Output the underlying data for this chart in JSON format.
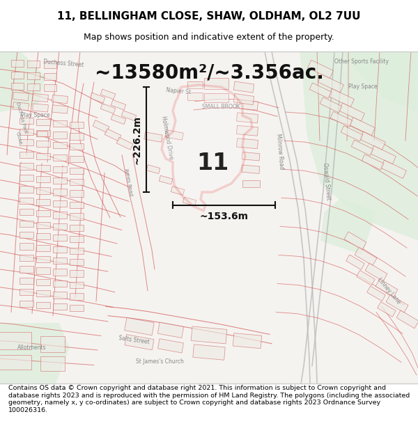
{
  "title_line1": "11, BELLINGHAM CLOSE, SHAW, OLDHAM, OL2 7UU",
  "title_line2": "Map shows position and indicative extent of the property.",
  "area_text": "~13580m²/~3.356ac.",
  "dim1_text": "~226.2m",
  "dim2_text": "~153.6m",
  "label_text": "11",
  "footer": "Contains OS data © Crown copyright and database right 2021. This information is subject to Crown copyright and database rights 2023 and is reproduced with the permission of HM Land Registry. The polygons (including the associated geometry, namely x, y co-ordinates) are subject to Crown copyright and database rights 2023 Ordnance Survey 100026316.",
  "map_bg": "#f5f3f0",
  "green1": "#deeedd",
  "green2": "#cce0cc",
  "street_color": "#cc3333",
  "street_alpha": 0.55,
  "building_fill": "#eeebe5",
  "building_edge": "#cc5555",
  "building_edge_alpha": 0.5,
  "poly_fill": "#ffffff",
  "poly_edge": "#dd0000",
  "poly_lw": 2.5,
  "dim_color": "#111111",
  "label_color": "#222222",
  "grey_road_color": "#bbbbbb",
  "text_color_grey": "#888888",
  "title_fontsize": 11,
  "subtitle_fontsize": 9,
  "area_fontsize": 20,
  "label_fontsize": 24,
  "dim_fontsize": 10,
  "footer_fontsize": 6.8
}
